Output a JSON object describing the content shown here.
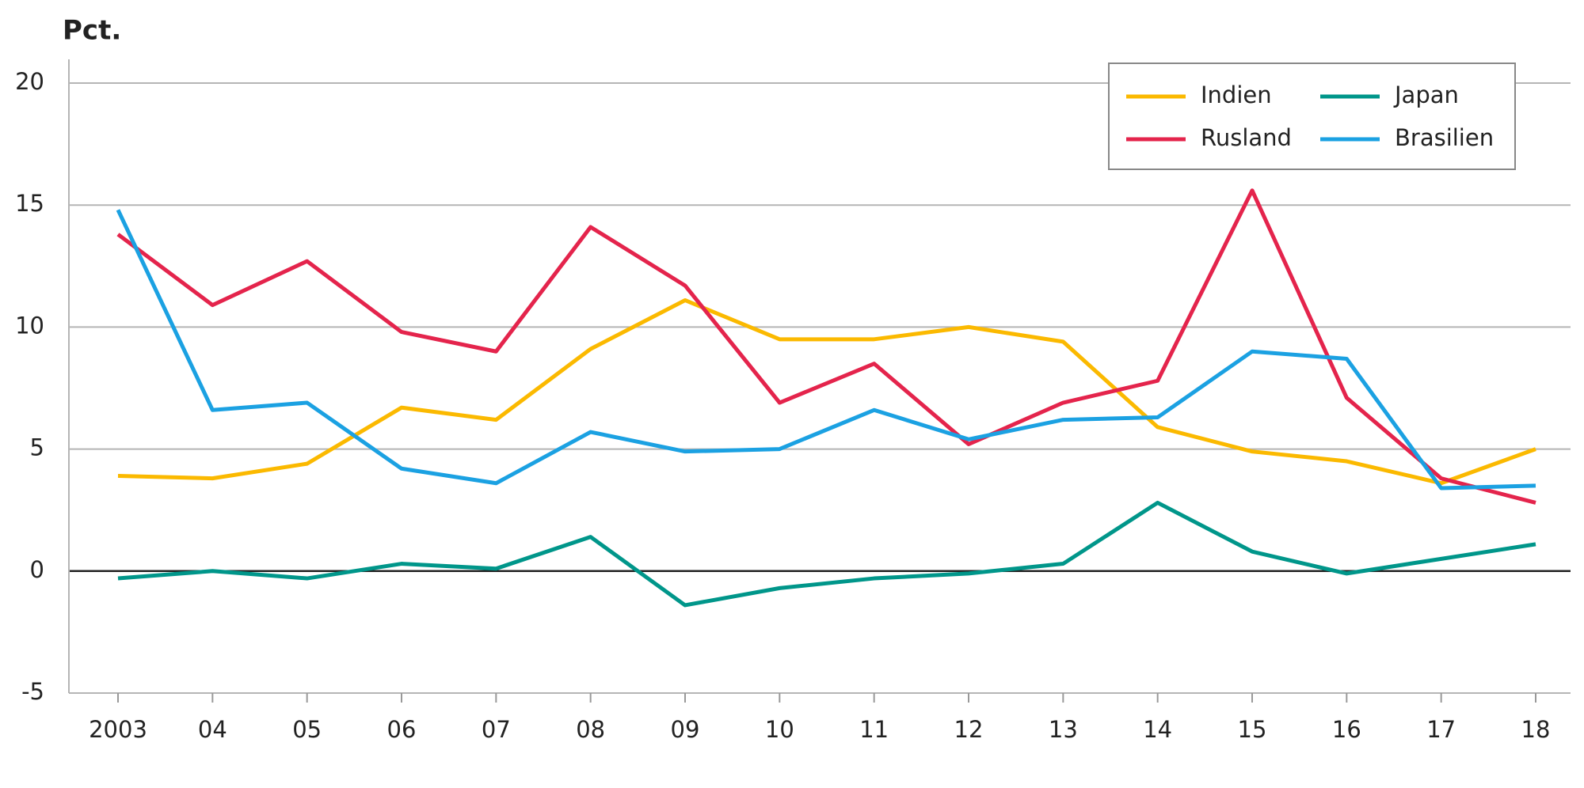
{
  "chart_data": {
    "type": "line",
    "y_label": "Pct.",
    "categories": [
      "2003",
      "04",
      "05",
      "06",
      "07",
      "08",
      "09",
      "10",
      "11",
      "12",
      "13",
      "14",
      "15",
      "16",
      "17",
      "18"
    ],
    "series": [
      {
        "name": "Indien",
        "color": "#fbb900",
        "values": [
          3.9,
          3.8,
          4.4,
          6.7,
          6.2,
          9.1,
          11.1,
          9.5,
          9.5,
          10.0,
          9.4,
          5.9,
          4.9,
          4.5,
          3.6,
          5.0
        ]
      },
      {
        "name": "Japan",
        "color": "#00968a",
        "values": [
          -0.3,
          0.0,
          -0.3,
          0.3,
          0.1,
          1.4,
          -1.4,
          -0.7,
          -0.3,
          -0.1,
          0.3,
          2.8,
          0.8,
          -0.1,
          0.5,
          1.1
        ]
      },
      {
        "name": "Rusland",
        "color": "#e4244c",
        "values": [
          13.8,
          10.9,
          12.7,
          9.8,
          9.0,
          14.1,
          11.7,
          6.9,
          8.5,
          5.2,
          6.9,
          7.8,
          15.6,
          7.1,
          3.8,
          2.8
        ]
      },
      {
        "name": "Brasilien",
        "color": "#1ba1e2",
        "values": [
          14.8,
          6.6,
          6.9,
          4.2,
          3.6,
          5.7,
          4.9,
          5.0,
          6.6,
          5.4,
          6.2,
          6.3,
          9.0,
          8.7,
          3.4,
          3.5
        ]
      }
    ],
    "ylim": [
      -5,
      20
    ],
    "yticks": [
      -5,
      0,
      5,
      10,
      15,
      20
    ],
    "grid": true,
    "legend": "top-right"
  }
}
